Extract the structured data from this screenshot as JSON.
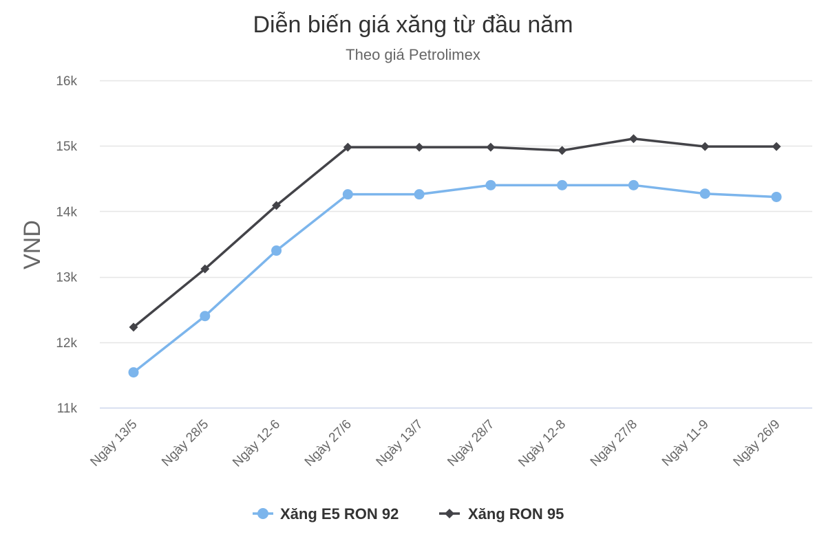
{
  "chart_data": {
    "type": "line",
    "title": "Diễn biến giá xăng từ đầu năm",
    "subtitle": "Theo giá Petrolimex",
    "xlabel": "",
    "ylabel": "VND",
    "ylim": [
      11000,
      16000
    ],
    "yticks": [
      11000,
      12000,
      13000,
      14000,
      15000,
      16000
    ],
    "ytick_labels": [
      "11k",
      "12k",
      "13k",
      "14k",
      "15k",
      "16k"
    ],
    "grid": true,
    "legend_position": "bottom",
    "categories": [
      "Ngày 13/5",
      "Ngày 28/5",
      "Ngày 12-6",
      "Ngày 27/6",
      "Ngày 13/7",
      "Ngày 28/7",
      "Ngày 12-8",
      "Ngày 27/8",
      "Ngày 11-9",
      "Ngày 26/9"
    ],
    "series": [
      {
        "name": "Xăng E5 RON 92",
        "color": "#7cb5ec",
        "marker": "circle",
        "values": [
          11540,
          12400,
          13400,
          14260,
          14260,
          14400,
          14400,
          14400,
          14270,
          14220
        ]
      },
      {
        "name": "Xăng RON 95",
        "color": "#434348",
        "marker": "diamond",
        "values": [
          12230,
          13120,
          14090,
          14980,
          14980,
          14980,
          14930,
          15110,
          14990,
          14990
        ]
      }
    ]
  }
}
